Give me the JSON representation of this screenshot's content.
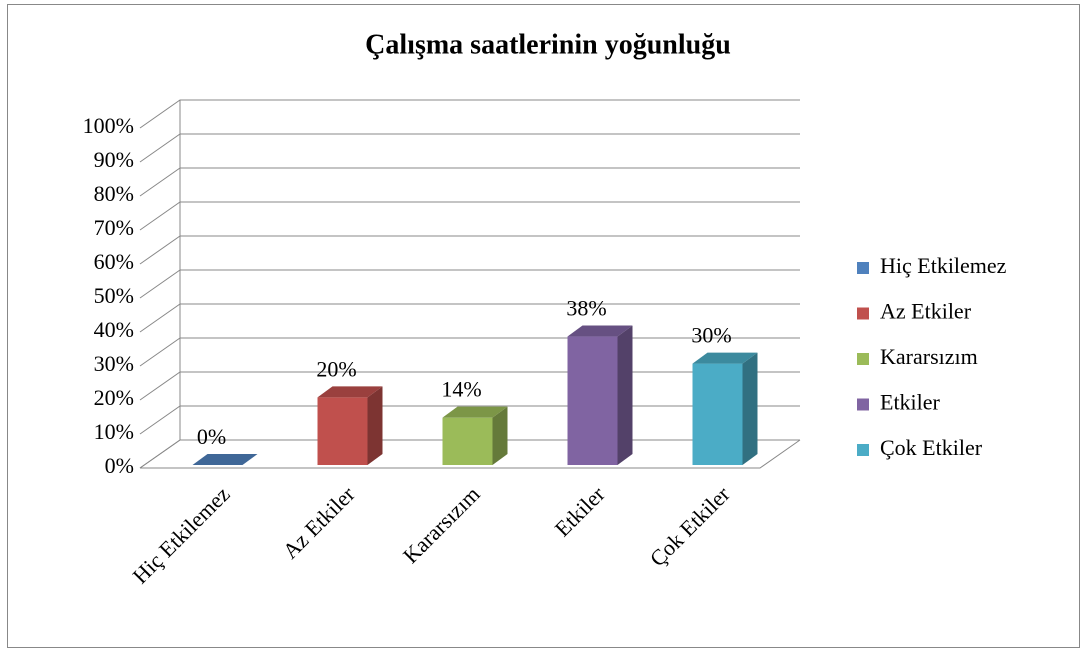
{
  "chart_data": {
    "type": "bar3d",
    "title": "Çalışma saatlerinin  yoğunluğu",
    "categories": [
      "Hiç Etkilemez",
      "Az Etkiler",
      "Kararsızım",
      "Etkiler",
      "Çok Etkiler"
    ],
    "values": [
      0,
      20,
      14,
      38,
      30
    ],
    "value_labels": [
      "0%",
      "20%",
      "14%",
      "38%",
      "30%"
    ],
    "colors": [
      "#4f81bd",
      "#c0504d",
      "#9bbb59",
      "#8064a2",
      "#4bacc6"
    ],
    "ylim": [
      0,
      100
    ],
    "yticks": [
      {
        "value": 0,
        "label": "0%"
      },
      {
        "value": 10,
        "label": "10%"
      },
      {
        "value": 20,
        "label": "20%"
      },
      {
        "value": 30,
        "label": "30%"
      },
      {
        "value": 40,
        "label": "40%"
      },
      {
        "value": 50,
        "label": "50%"
      },
      {
        "value": 60,
        "label": "60%"
      },
      {
        "value": 70,
        "label": "70%"
      },
      {
        "value": 80,
        "label": "80%"
      },
      {
        "value": 90,
        "label": "90%"
      },
      {
        "value": 100,
        "label": "100%"
      }
    ],
    "grid": true,
    "legend": "right"
  }
}
